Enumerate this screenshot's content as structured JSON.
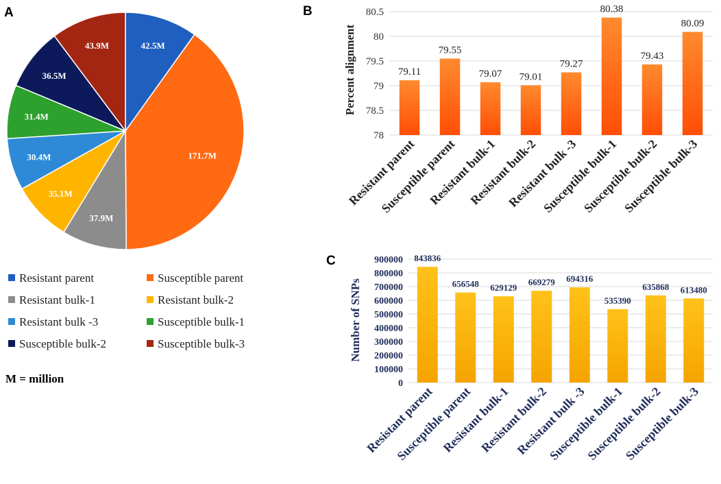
{
  "panels": {
    "a": "A",
    "b": "B",
    "c": "C"
  },
  "colors": {
    "orange_top": "#ff8a2e",
    "orange_bottom": "#ff4e05",
    "gold_top": "#ffc21a",
    "gold_bottom": "#f5a400",
    "gridline": "#d9d9d9"
  },
  "chart_data": [
    {
      "id": "A",
      "type": "pie",
      "categories": [
        "Resistant parent",
        "Susceptible parent",
        "Resistant bulk-1",
        "Resistant bulk-2",
        "Resistant bulk -3",
        "Susceptible bulk-1",
        "Susceptible bulk-2",
        "Susceptible bulk-3"
      ],
      "values": [
        42.5,
        171.7,
        37.9,
        35.1,
        30.4,
        31.4,
        36.5,
        43.9
      ],
      "labels": [
        "42.5M",
        "171.7M",
        "37.9M",
        "35.1M",
        "30.4M",
        "31.4M",
        "36.5M",
        "43.9M"
      ],
      "colors": [
        "#1f5fbf",
        "#ff6a13",
        "#8c8c8c",
        "#ffb400",
        "#2e8ad6",
        "#2da02d",
        "#0c1a5c",
        "#a32612"
      ],
      "label_colors": [
        "#ffffff",
        "#ffffff",
        "#ffffff",
        "#ffffff",
        "#ffffff",
        "#ffffff",
        "#ffffff",
        "#ffffff"
      ],
      "legend_labels": [
        "Resistant parent",
        "Susceptible parent",
        "Resistant bulk-1",
        "Resistant bulk-2",
        "Resistant bulk -3",
        "Susceptible bulk-1",
        "Susceptible bulk-2",
        "Susceptible bulk-3"
      ],
      "legend_placement": "bottom",
      "note": "M = million"
    },
    {
      "id": "B",
      "type": "bar",
      "categories": [
        "Resistant parent",
        "Susceptible parent",
        "Resistant bulk-1",
        "Resistant bulk-2",
        "Resistant bulk -3",
        "Susceptible bulk-1",
        "Susceptible bulk-2",
        "Susceptible bulk-3"
      ],
      "values": [
        79.11,
        79.55,
        79.07,
        79.01,
        79.27,
        80.38,
        79.43,
        80.09
      ],
      "value_labels": [
        "79.11",
        "79.55",
        "79.07",
        "79.01",
        "79.27",
        "80.38",
        "79.43",
        "80.09"
      ],
      "ylabel": "Percent alignment",
      "xlabel": "",
      "ylim": [
        78,
        80.5
      ],
      "yticks": [
        78,
        78.5,
        79,
        79.5,
        80,
        80.5
      ],
      "ytick_labels": [
        "78",
        "78.5",
        "79",
        "79.5",
        "80",
        "80.5"
      ],
      "grid": true
    },
    {
      "id": "C",
      "type": "bar",
      "categories": [
        "Resistant parent",
        "Susceptible parent",
        "Resistant bulk-1",
        "Resistant bulk-2",
        "Resistant bulk -3",
        "Susceptible bulk-1",
        "Susceptible bulk-2",
        "Susceptible bulk-3"
      ],
      "values": [
        843836,
        656548,
        629129,
        669279,
        694316,
        535390,
        635868,
        613480
      ],
      "value_labels": [
        "843836",
        "656548",
        "629129",
        "669279",
        "694316",
        "535390",
        "635868",
        "613480"
      ],
      "ylabel": "Number of SNPs",
      "xlabel": "",
      "ylim": [
        0,
        900000
      ],
      "yticks": [
        0,
        100000,
        200000,
        300000,
        400000,
        500000,
        600000,
        700000,
        800000,
        900000
      ],
      "ytick_labels": [
        "0",
        "100000",
        "200000",
        "300000",
        "400000",
        "500000",
        "600000",
        "700000",
        "800000",
        "900000"
      ],
      "grid": true
    }
  ]
}
